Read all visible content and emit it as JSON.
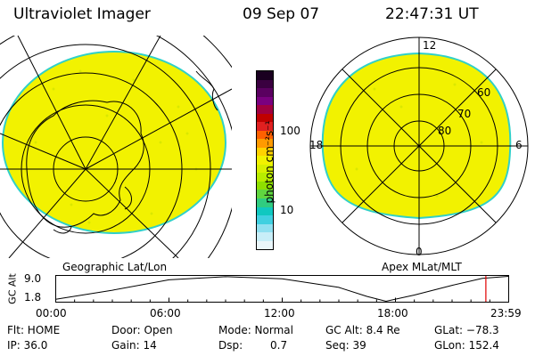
{
  "header": {
    "instrument": "Ultraviolet Imager",
    "date": "09 Sep 07",
    "time": "22:47:31 UT"
  },
  "left_map": {
    "caption": "Geographic Lat/Lon"
  },
  "right_map": {
    "caption": "Apex MLat/MLT",
    "mlt_labels": [
      "12",
      "18",
      "6",
      "0"
    ],
    "mlat_labels": [
      "60",
      "70",
      "80"
    ]
  },
  "colorbar": {
    "unit_label": "photon cm⁻²s⁻¹",
    "tick_100": "100",
    "tick_10": "10",
    "colors": [
      "#1a0020",
      "#3a0040",
      "#5a0060",
      "#7a0080",
      "#a00040",
      "#c00000",
      "#e02020",
      "#ff6000",
      "#ff9a00",
      "#ffd200",
      "#f2f200",
      "#d8f000",
      "#b8ec00",
      "#8ee000",
      "#60d640",
      "#30cc80",
      "#10c8c0",
      "#40d0e0",
      "#90e0f0",
      "#c8eef8",
      "#eaf6fa"
    ]
  },
  "altitude_plot": {
    "ylabel": "GC Alt",
    "ytick_top": "9.0",
    "ytick_bottom": "1.8",
    "xticks": [
      "00:00",
      "06:00",
      "12:00",
      "18:00",
      "23:59"
    ],
    "orbit_track_alt_re": [
      [
        0,
        2.4
      ],
      [
        3,
        5.0
      ],
      [
        6,
        8.0
      ],
      [
        9,
        8.9
      ],
      [
        12,
        8.3
      ],
      [
        15,
        5.8
      ],
      [
        16.5,
        3.2
      ],
      [
        17.5,
        1.8
      ],
      [
        19,
        3.6
      ],
      [
        21,
        6.4
      ],
      [
        22.6,
        8.4
      ],
      [
        23.98,
        9.0
      ]
    ],
    "current_time_hours": 22.79
  },
  "status": {
    "flt": "Flt: HOME",
    "door": "Door: Open",
    "mode": "Mode: Normal",
    "gc_alt": "GC Alt: 8.4 Re",
    "glat": "GLat: −78.3",
    "ip": "IP: 36.0",
    "gain": "Gain: 14",
    "dsp_label": "Dsp:",
    "dsp_value": "0.7",
    "seq": "Seq: 39",
    "glon": "GLon: 152.4"
  },
  "colors": {
    "fill": "#f2f200",
    "edge": "#30d0c8",
    "current_time_marker": "#e00000"
  }
}
